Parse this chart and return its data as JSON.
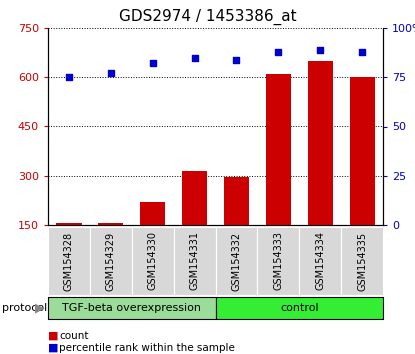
{
  "title": "GDS2974 / 1453386_at",
  "samples": [
    "GSM154328",
    "GSM154329",
    "GSM154330",
    "GSM154331",
    "GSM154332",
    "GSM154333",
    "GSM154334",
    "GSM154335"
  ],
  "counts": [
    155,
    155,
    220,
    315,
    295,
    610,
    650,
    600
  ],
  "percentile_ranks": [
    75,
    77,
    82,
    85,
    84,
    88,
    89,
    88
  ],
  "left_ylim": [
    150,
    750
  ],
  "left_yticks": [
    150,
    300,
    450,
    600,
    750
  ],
  "right_ylim": [
    0,
    100
  ],
  "right_yticks": [
    0,
    25,
    50,
    75,
    100
  ],
  "right_yticklabels": [
    "0",
    "25",
    "50",
    "75",
    "100%"
  ],
  "bar_color": "#cc0000",
  "dot_color": "#0000cc",
  "sample_bg_color": "#d8d8d8",
  "protocol_groups": [
    {
      "label": "TGF-beta overexpression",
      "start": 0,
      "end": 3,
      "color": "#99dd99"
    },
    {
      "label": "control",
      "start": 4,
      "end": 7,
      "color": "#33ee33"
    }
  ],
  "protocol_label": "protocol",
  "legend_items": [
    {
      "color": "#cc0000",
      "label": "count"
    },
    {
      "color": "#0000cc",
      "label": "percentile rank within the sample"
    }
  ],
  "title_fontsize": 11,
  "tick_fontsize": 8,
  "sample_fontsize": 7,
  "proto_fontsize": 8,
  "legend_fontsize": 7.5
}
